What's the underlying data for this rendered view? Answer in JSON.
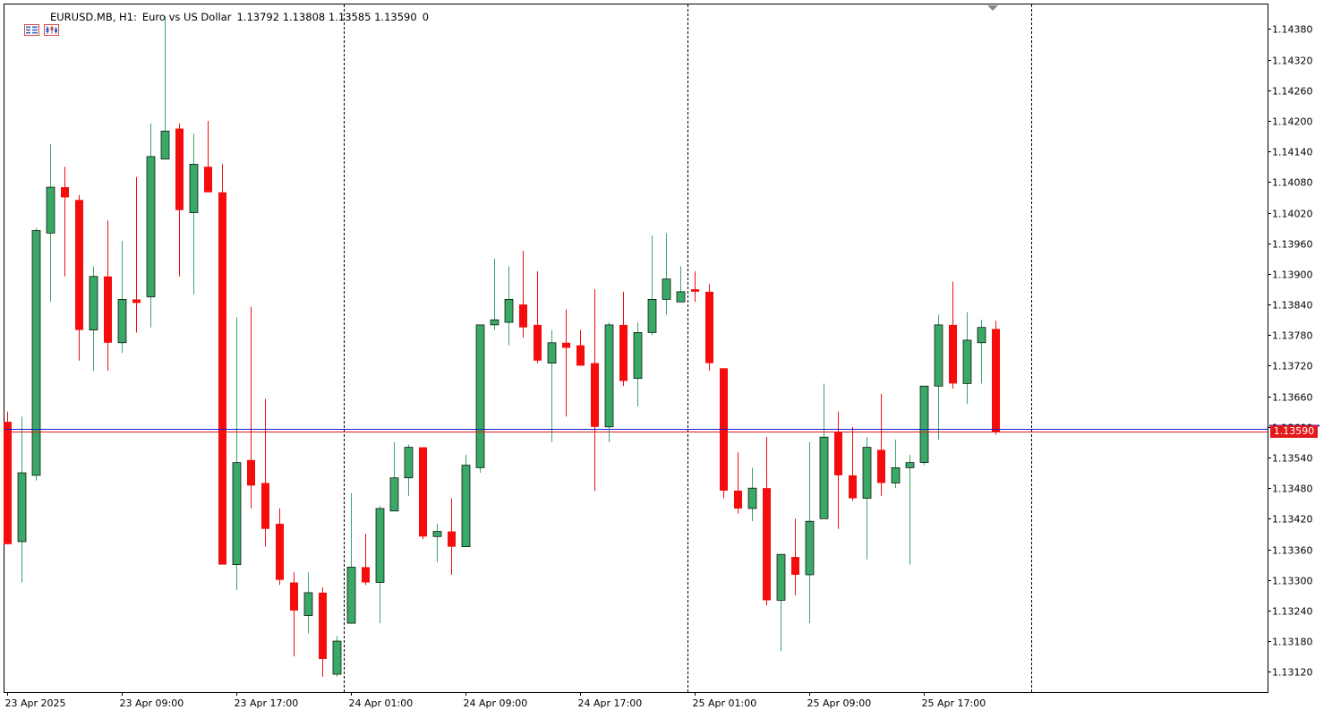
{
  "header": {
    "symbol_period": "EURUSD.MB, H1:",
    "description": "Euro vs US Dollar",
    "ohlc": "1.13792 1.13808 1.13585 1.13590",
    "volume": "0",
    "icons": [
      "menu-grid-icon",
      "chart-type-icon"
    ]
  },
  "current_price_label": "1.13590",
  "colors": {
    "bull": "#3aa867",
    "bear": "#f50d0d",
    "bid_line": "#e0191b",
    "ask_line": "#1b1bd0",
    "axis": "#000000",
    "separator": "#000000"
  },
  "chart_data": {
    "type": "candlestick",
    "symbol": "EURUSD.MB",
    "timeframe": "H1",
    "ylim": [
      1.1308,
      1.1443
    ],
    "y_ticks": [
      "1.14380",
      "1.14320",
      "1.14260",
      "1.14200",
      "1.14140",
      "1.14080",
      "1.14020",
      "1.13960",
      "1.13900",
      "1.13840",
      "1.13780",
      "1.13720",
      "1.13660",
      "1.13600",
      "1.13540",
      "1.13480",
      "1.13420",
      "1.13360",
      "1.13300",
      "1.13240",
      "1.13180",
      "1.13120"
    ],
    "x_ticks": [
      {
        "label": "23 Apr 2025",
        "index": 0
      },
      {
        "label": "23 Apr 09:00",
        "index": 8
      },
      {
        "label": "23 Apr 17:00",
        "index": 16
      },
      {
        "label": "24 Apr 01:00",
        "index": 24
      },
      {
        "label": "24 Apr 09:00",
        "index": 32
      },
      {
        "label": "24 Apr 17:00",
        "index": 40
      },
      {
        "label": "25 Apr 01:00",
        "index": 48
      },
      {
        "label": "25 Apr 09:00",
        "index": 56
      },
      {
        "label": "25 Apr 17:00",
        "index": 64
      }
    ],
    "day_separators": [
      23,
      47,
      71
    ],
    "bid": 1.1359,
    "ask": 1.13597,
    "candles": [
      {
        "o": 1.1361,
        "h": 1.1363,
        "l": 1.1337,
        "c": 1.1337
      },
      {
        "o": 1.13375,
        "h": 1.1362,
        "l": 1.13295,
        "c": 1.1351
      },
      {
        "o": 1.13505,
        "h": 1.1399,
        "l": 1.13495,
        "c": 1.13985
      },
      {
        "o": 1.1398,
        "h": 1.14155,
        "l": 1.13845,
        "c": 1.1407
      },
      {
        "o": 1.1407,
        "h": 1.1411,
        "l": 1.13895,
        "c": 1.1405
      },
      {
        "o": 1.14045,
        "h": 1.14055,
        "l": 1.1373,
        "c": 1.1379
      },
      {
        "o": 1.1379,
        "h": 1.13915,
        "l": 1.1371,
        "c": 1.13895
      },
      {
        "o": 1.13895,
        "h": 1.14005,
        "l": 1.1371,
        "c": 1.13765
      },
      {
        "o": 1.13765,
        "h": 1.13965,
        "l": 1.13745,
        "c": 1.1385
      },
      {
        "o": 1.1385,
        "h": 1.1409,
        "l": 1.13785,
        "c": 1.13843
      },
      {
        "o": 1.13855,
        "h": 1.14195,
        "l": 1.13795,
        "c": 1.1413
      },
      {
        "o": 1.14125,
        "h": 1.14405,
        "l": 1.14125,
        "c": 1.1418
      },
      {
        "o": 1.14185,
        "h": 1.14195,
        "l": 1.13895,
        "c": 1.14025
      },
      {
        "o": 1.1402,
        "h": 1.14175,
        "l": 1.1386,
        "c": 1.14115
      },
      {
        "o": 1.1411,
        "h": 1.142,
        "l": 1.1406,
        "c": 1.1406
      },
      {
        "o": 1.1406,
        "h": 1.14115,
        "l": 1.1333,
        "c": 1.1333
      },
      {
        "o": 1.1333,
        "h": 1.13815,
        "l": 1.1328,
        "c": 1.1353
      },
      {
        "o": 1.13535,
        "h": 1.13835,
        "l": 1.1344,
        "c": 1.13485
      },
      {
        "o": 1.1349,
        "h": 1.13655,
        "l": 1.13365,
        "c": 1.134
      },
      {
        "o": 1.1341,
        "h": 1.1344,
        "l": 1.1329,
        "c": 1.133
      },
      {
        "o": 1.13295,
        "h": 1.13315,
        "l": 1.1315,
        "c": 1.1324
      },
      {
        "o": 1.1323,
        "h": 1.13315,
        "l": 1.13195,
        "c": 1.13275
      },
      {
        "o": 1.13275,
        "h": 1.13285,
        "l": 1.1311,
        "c": 1.13145
      },
      {
        "o": 1.13115,
        "h": 1.1319,
        "l": 1.1311,
        "c": 1.1318
      },
      {
        "o": 1.13215,
        "h": 1.1347,
        "l": 1.13215,
        "c": 1.13325
      },
      {
        "o": 1.13325,
        "h": 1.1339,
        "l": 1.1329,
        "c": 1.13295
      },
      {
        "o": 1.13295,
        "h": 1.13445,
        "l": 1.13215,
        "c": 1.1344
      },
      {
        "o": 1.13435,
        "h": 1.1357,
        "l": 1.13435,
        "c": 1.135
      },
      {
        "o": 1.135,
        "h": 1.13565,
        "l": 1.13465,
        "c": 1.1356
      },
      {
        "o": 1.1356,
        "h": 1.1356,
        "l": 1.1338,
        "c": 1.13385
      },
      {
        "o": 1.13385,
        "h": 1.1341,
        "l": 1.13335,
        "c": 1.13395
      },
      {
        "o": 1.13395,
        "h": 1.1346,
        "l": 1.1331,
        "c": 1.13365
      },
      {
        "o": 1.13365,
        "h": 1.13545,
        "l": 1.13365,
        "c": 1.13525
      },
      {
        "o": 1.1352,
        "h": 1.138,
        "l": 1.1351,
        "c": 1.138
      },
      {
        "o": 1.138,
        "h": 1.1393,
        "l": 1.1379,
        "c": 1.1381
      },
      {
        "o": 1.13805,
        "h": 1.13915,
        "l": 1.1376,
        "c": 1.1385
      },
      {
        "o": 1.1384,
        "h": 1.13945,
        "l": 1.13775,
        "c": 1.13795
      },
      {
        "o": 1.138,
        "h": 1.13905,
        "l": 1.13725,
        "c": 1.1373
      },
      {
        "o": 1.13725,
        "h": 1.1379,
        "l": 1.1357,
        "c": 1.13765
      },
      {
        "o": 1.13765,
        "h": 1.1383,
        "l": 1.1362,
        "c": 1.13755
      },
      {
        "o": 1.1376,
        "h": 1.1379,
        "l": 1.13725,
        "c": 1.1372
      },
      {
        "o": 1.13725,
        "h": 1.1387,
        "l": 1.13475,
        "c": 1.136
      },
      {
        "o": 1.136,
        "h": 1.13805,
        "l": 1.1357,
        "c": 1.138
      },
      {
        "o": 1.138,
        "h": 1.13865,
        "l": 1.1368,
        "c": 1.1369
      },
      {
        "o": 1.13695,
        "h": 1.13805,
        "l": 1.1364,
        "c": 1.13785
      },
      {
        "o": 1.13785,
        "h": 1.13975,
        "l": 1.1378,
        "c": 1.1385
      },
      {
        "o": 1.1385,
        "h": 1.1398,
        "l": 1.1382,
        "c": 1.1389
      },
      {
        "o": 1.13845,
        "h": 1.13915,
        "l": 1.13845,
        "c": 1.13865
      },
      {
        "o": 1.1387,
        "h": 1.13905,
        "l": 1.13845,
        "c": 1.13865
      },
      {
        "o": 1.13865,
        "h": 1.1388,
        "l": 1.1371,
        "c": 1.13725
      },
      {
        "o": 1.13715,
        "h": 1.13715,
        "l": 1.1346,
        "c": 1.13475
      },
      {
        "o": 1.13475,
        "h": 1.1355,
        "l": 1.1343,
        "c": 1.1344
      },
      {
        "o": 1.1344,
        "h": 1.1352,
        "l": 1.13415,
        "c": 1.1348
      },
      {
        "o": 1.1348,
        "h": 1.1358,
        "l": 1.1325,
        "c": 1.1326
      },
      {
        "o": 1.1326,
        "h": 1.1335,
        "l": 1.1316,
        "c": 1.1335
      },
      {
        "o": 1.13345,
        "h": 1.1342,
        "l": 1.1327,
        "c": 1.1331
      },
      {
        "o": 1.1331,
        "h": 1.1357,
        "l": 1.13215,
        "c": 1.13415
      },
      {
        "o": 1.1342,
        "h": 1.13685,
        "l": 1.1342,
        "c": 1.1358
      },
      {
        "o": 1.1359,
        "h": 1.1363,
        "l": 1.134,
        "c": 1.13505
      },
      {
        "o": 1.13505,
        "h": 1.136,
        "l": 1.13455,
        "c": 1.1346
      },
      {
        "o": 1.1346,
        "h": 1.1358,
        "l": 1.1334,
        "c": 1.1356
      },
      {
        "o": 1.13555,
        "h": 1.13665,
        "l": 1.13465,
        "c": 1.1349
      },
      {
        "o": 1.1349,
        "h": 1.13575,
        "l": 1.1348,
        "c": 1.1352
      },
      {
        "o": 1.1352,
        "h": 1.13545,
        "l": 1.1333,
        "c": 1.1353
      },
      {
        "o": 1.1353,
        "h": 1.1368,
        "l": 1.13525,
        "c": 1.1368
      },
      {
        "o": 1.1368,
        "h": 1.1382,
        "l": 1.13575,
        "c": 1.138
      },
      {
        "o": 1.138,
        "h": 1.13885,
        "l": 1.13675,
        "c": 1.13685
      },
      {
        "o": 1.13685,
        "h": 1.13825,
        "l": 1.13645,
        "c": 1.1377
      },
      {
        "o": 1.13765,
        "h": 1.1381,
        "l": 1.13685,
        "c": 1.13795
      },
      {
        "o": 1.13792,
        "h": 1.13808,
        "l": 1.13585,
        "c": 1.1359
      }
    ]
  }
}
